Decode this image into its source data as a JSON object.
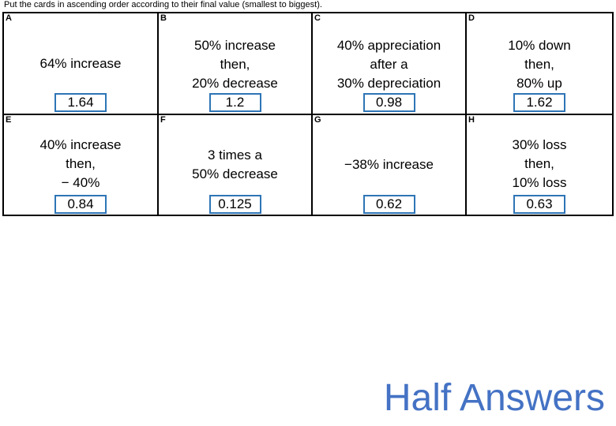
{
  "instruction": "Put the cards in ascending order according to their final value (smallest to biggest).",
  "cards": [
    {
      "letter": "A",
      "lines": [
        "64% increase"
      ],
      "answer": "1.64"
    },
    {
      "letter": "B",
      "lines": [
        "50% increase",
        "then,",
        "20% decrease"
      ],
      "answer": "1.2"
    },
    {
      "letter": "C",
      "lines": [
        "40% appreciation",
        "after a",
        "30% depreciation"
      ],
      "answer": "0.98"
    },
    {
      "letter": "D",
      "lines": [
        "10% down",
        "then,",
        "80% up"
      ],
      "answer": "1.62"
    },
    {
      "letter": "E",
      "lines": [
        "40% increase",
        "then,",
        "− 40%"
      ],
      "answer": "0.84"
    },
    {
      "letter": "F",
      "lines": [
        "3 times a",
        "50% decrease"
      ],
      "answer": "0.125"
    },
    {
      "letter": "G",
      "lines": [
        "−38% increase"
      ],
      "answer": "0.62"
    },
    {
      "letter": "H",
      "lines": [
        "30% loss",
        "then,",
        "10% loss"
      ],
      "answer": "0.63"
    }
  ],
  "footer": "Half Answers"
}
